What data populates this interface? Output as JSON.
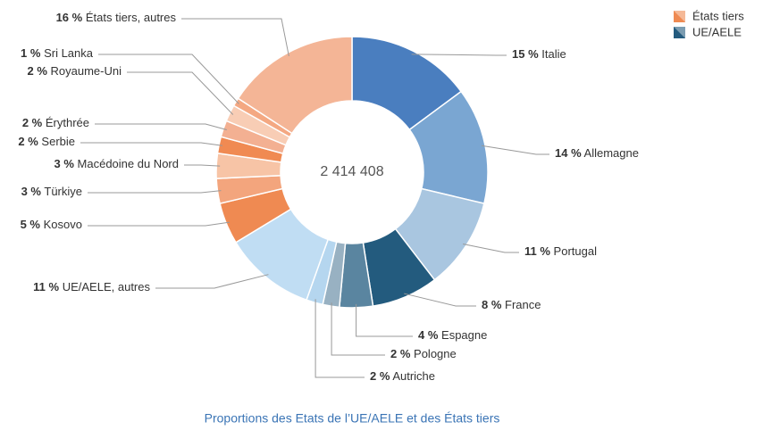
{
  "chart_data": {
    "type": "donut",
    "caption": "Proportions des Etats de l’UE/AELE et des États tiers",
    "center_label": "2 414 408",
    "categories": [
      "Italie",
      "Allemagne",
      "Portugal",
      "France",
      "Espagne",
      "Pologne",
      "Autriche",
      "UE/AELE, autres",
      "Kosovo",
      "Türkiye",
      "Macédoine du Nord",
      "Serbie",
      "Érythrée",
      "Royaume-Uni",
      "Sri Lanka",
      "États tiers, autres"
    ],
    "values": [
      15,
      14,
      11,
      8,
      4,
      2,
      2,
      11,
      5,
      3,
      3,
      2,
      2,
      2,
      1,
      16
    ],
    "value_labels": [
      "15 %",
      "14 %",
      "11 %",
      "8 %",
      "4 %",
      "2 %",
      "2 %",
      "11 %",
      "5 %",
      "3 %",
      "3 %",
      "2 %",
      "2 %",
      "2 %",
      "1 %",
      "16 %"
    ],
    "colors": [
      "#4a7ebf",
      "#7aa6d2",
      "#a9c6e0",
      "#235b7e",
      "#5a85a0",
      "#98b1c2",
      "#b5d6ef",
      "#c0ddf3",
      "#ef8a52",
      "#f3a57d",
      "#f7c4a6",
      "#f08a52",
      "#f3b092",
      "#f8cdb5",
      "#f4a882",
      "#f4b596"
    ],
    "legend": [
      {
        "name": "États tiers",
        "color": "#ef8a52"
      },
      {
        "name": "UE/AELE",
        "color": "#235b7e"
      }
    ]
  }
}
